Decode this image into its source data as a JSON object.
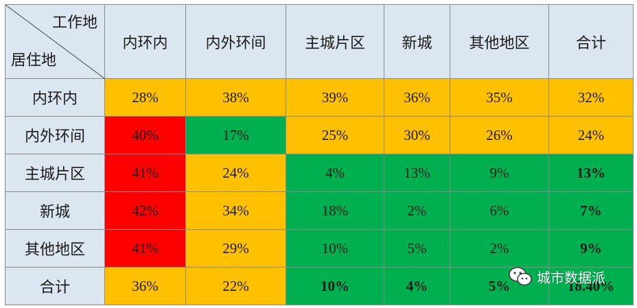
{
  "header": {
    "corner_top": "工作地",
    "corner_bottom": "居住地",
    "columns": [
      "内环内",
      "内外环间",
      "主城片区",
      "新城",
      "其他地区",
      "合计"
    ]
  },
  "rows": [
    {
      "label": "内环内",
      "cells": [
        {
          "v": "28%",
          "c": "#ffc000",
          "b": false
        },
        {
          "v": "38%",
          "c": "#ffc000",
          "b": false
        },
        {
          "v": "39%",
          "c": "#ffc000",
          "b": false
        },
        {
          "v": "36%",
          "c": "#ffc000",
          "b": false
        },
        {
          "v": "35%",
          "c": "#ffc000",
          "b": false
        },
        {
          "v": "32%",
          "c": "#ffc000",
          "b": false
        }
      ]
    },
    {
      "label": "内外环间",
      "cells": [
        {
          "v": "40%",
          "c": "#ff0000",
          "b": false
        },
        {
          "v": "17%",
          "c": "#00b050",
          "b": false
        },
        {
          "v": "25%",
          "c": "#ffc000",
          "b": false
        },
        {
          "v": "30%",
          "c": "#ffc000",
          "b": false
        },
        {
          "v": "26%",
          "c": "#ffc000",
          "b": false
        },
        {
          "v": "24%",
          "c": "#ffc000",
          "b": false
        }
      ]
    },
    {
      "label": "主城片区",
      "cells": [
        {
          "v": "41%",
          "c": "#ff0000",
          "b": false
        },
        {
          "v": "24%",
          "c": "#ffc000",
          "b": false
        },
        {
          "v": "4%",
          "c": "#00b050",
          "b": false
        },
        {
          "v": "13%",
          "c": "#00b050",
          "b": false
        },
        {
          "v": "9%",
          "c": "#00b050",
          "b": false
        },
        {
          "v": "13%",
          "c": "#00b050",
          "b": true
        }
      ]
    },
    {
      "label": "新城",
      "cells": [
        {
          "v": "42%",
          "c": "#ff0000",
          "b": false
        },
        {
          "v": "34%",
          "c": "#ffc000",
          "b": false
        },
        {
          "v": "18%",
          "c": "#00b050",
          "b": false
        },
        {
          "v": "2%",
          "c": "#00b050",
          "b": false
        },
        {
          "v": "6%",
          "c": "#00b050",
          "b": false
        },
        {
          "v": "7%",
          "c": "#00b050",
          "b": true
        }
      ]
    },
    {
      "label": "其他地区",
      "cells": [
        {
          "v": "41%",
          "c": "#ff0000",
          "b": false
        },
        {
          "v": "29%",
          "c": "#ffc000",
          "b": false
        },
        {
          "v": "10%",
          "c": "#00b050",
          "b": false
        },
        {
          "v": "5%",
          "c": "#00b050",
          "b": false
        },
        {
          "v": "2%",
          "c": "#00b050",
          "b": false
        },
        {
          "v": "9%",
          "c": "#00b050",
          "b": true
        }
      ]
    },
    {
      "label": "合计",
      "cells": [
        {
          "v": "36%",
          "c": "#ffc000",
          "b": false
        },
        {
          "v": "22%",
          "c": "#ffc000",
          "b": false
        },
        {
          "v": "10%",
          "c": "#00b050",
          "b": true
        },
        {
          "v": "4%",
          "c": "#00b050",
          "b": true
        },
        {
          "v": "5%",
          "c": "#00b050",
          "b": true
        },
        {
          "v": "18.40%",
          "c": "#00b050",
          "b": true
        }
      ]
    }
  ],
  "watermark": {
    "text": "城市数据派",
    "icon": "wechat-icon"
  }
}
